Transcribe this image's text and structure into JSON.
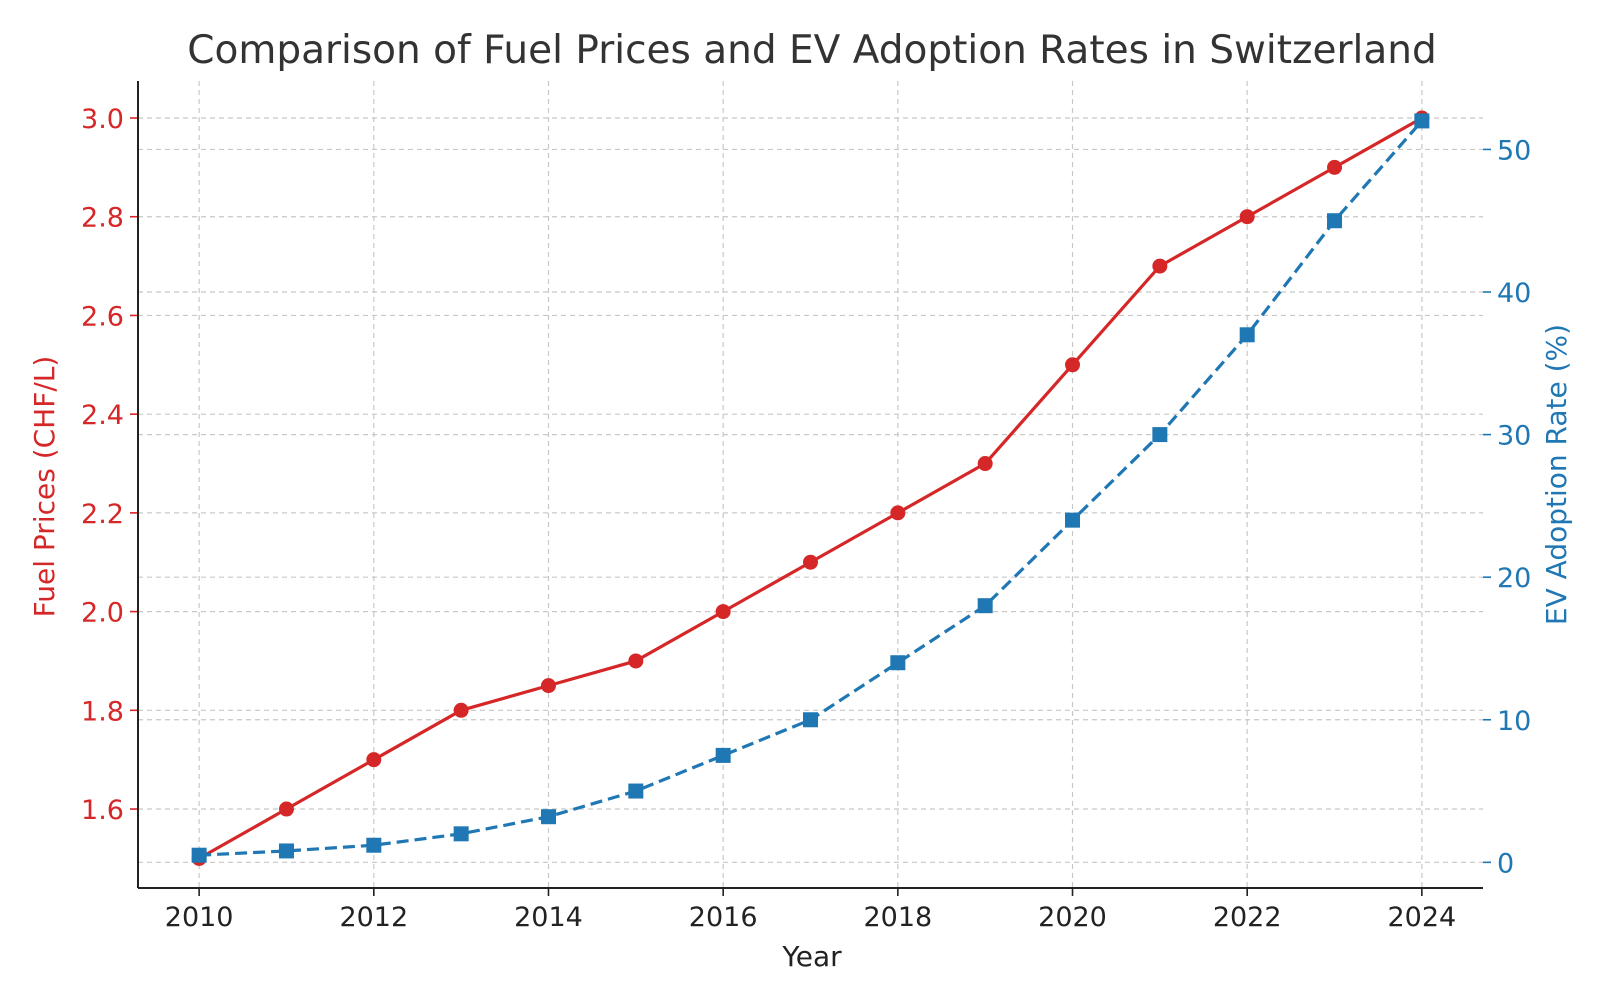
{
  "chart_data": {
    "type": "line",
    "title": "Comparison of Fuel Prices and EV Adoption Rates in Switzerland",
    "xlabel": "Year",
    "x": [
      2010,
      2011,
      2012,
      2013,
      2014,
      2015,
      2016,
      2017,
      2018,
      2019,
      2020,
      2021,
      2022,
      2023,
      2024
    ],
    "xlim": [
      2009.3,
      2024.7
    ],
    "xticks": [
      2010,
      2012,
      2014,
      2016,
      2018,
      2020,
      2022,
      2024
    ],
    "grid": true,
    "series": [
      {
        "axis": "left",
        "ylabel": "Fuel Prices (CHF/L)",
        "color": "#d62728",
        "line_style": "solid",
        "marker": "circle",
        "values": [
          1.5,
          1.6,
          1.7,
          1.8,
          1.85,
          1.9,
          2.0,
          2.1,
          2.2,
          2.3,
          2.5,
          2.7,
          2.8,
          2.9,
          3.0
        ],
        "ylim": [
          1.44,
          3.075
        ],
        "yticks": [
          "1.6",
          "1.8",
          "2.0",
          "2.2",
          "2.4",
          "2.6",
          "2.8",
          "3.0"
        ]
      },
      {
        "axis": "right",
        "ylabel": "EV Adoption Rate (%)",
        "color": "#1f77b4",
        "line_style": "dashed",
        "marker": "square",
        "values": [
          0.5,
          0.8,
          1.2,
          2.0,
          3.2,
          5.0,
          7.5,
          10.0,
          14.0,
          18.0,
          24.0,
          30.0,
          37.0,
          45.0,
          52.0
        ],
        "ylim": [
          -1.8,
          54.8
        ],
        "yticks": [
          "0",
          "10",
          "20",
          "30",
          "40",
          "50"
        ]
      }
    ]
  }
}
